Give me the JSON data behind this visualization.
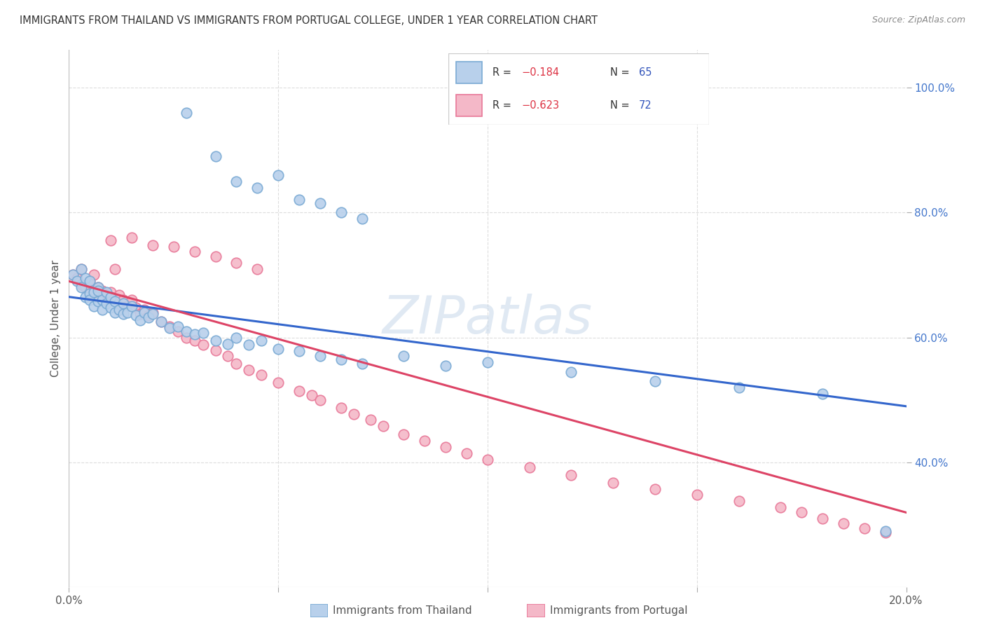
{
  "title": "IMMIGRANTS FROM THAILAND VS IMMIGRANTS FROM PORTUGAL COLLEGE, UNDER 1 YEAR CORRELATION CHART",
  "source": "Source: ZipAtlas.com",
  "ylabel": "College, Under 1 year",
  "x_min": 0.0,
  "x_max": 0.2,
  "y_min": 0.2,
  "y_max": 1.06,
  "right_y_ticks": [
    1.0,
    0.8,
    0.6,
    0.4
  ],
  "right_y_labels": [
    "100.0%",
    "80.0%",
    "60.0%",
    "40.0%"
  ],
  "x_ticks": [
    0.0,
    0.05,
    0.1,
    0.15,
    0.2
  ],
  "x_tick_labels": [
    "0.0%",
    "",
    "",
    "",
    "20.0%"
  ],
  "bottom_labels": [
    "Immigrants from Thailand",
    "Immigrants from Portugal"
  ],
  "thailand_color": "#b8d0eb",
  "thailand_edge": "#7aaad4",
  "portugal_color": "#f4b8c8",
  "portugal_edge": "#e87898",
  "thailand_line_color": "#3366cc",
  "portugal_line_color": "#dd4466",
  "R_thailand": -0.184,
  "N_thailand": 65,
  "R_portugal": -0.623,
  "N_portugal": 72,
  "watermark": "ZIPatlas",
  "background_color": "#ffffff",
  "grid_color": "#dddddd",
  "title_color": "#333333",
  "axis_label_color": "#555555",
  "legend_color_R": "#dd3344",
  "legend_color_N": "#3355bb",
  "thailand_x": [
    0.001,
    0.002,
    0.003,
    0.003,
    0.004,
    0.004,
    0.005,
    0.005,
    0.005,
    0.006,
    0.006,
    0.007,
    0.007,
    0.007,
    0.008,
    0.008,
    0.009,
    0.009,
    0.01,
    0.01,
    0.011,
    0.011,
    0.012,
    0.013,
    0.013,
    0.014,
    0.015,
    0.016,
    0.017,
    0.018,
    0.019,
    0.02,
    0.022,
    0.024,
    0.026,
    0.028,
    0.03,
    0.032,
    0.035,
    0.038,
    0.04,
    0.043,
    0.046,
    0.05,
    0.055,
    0.06,
    0.065,
    0.07,
    0.028,
    0.035,
    0.04,
    0.045,
    0.05,
    0.055,
    0.06,
    0.065,
    0.07,
    0.08,
    0.09,
    0.1,
    0.12,
    0.14,
    0.16,
    0.18,
    0.195
  ],
  "thailand_y": [
    0.7,
    0.69,
    0.68,
    0.71,
    0.665,
    0.695,
    0.67,
    0.66,
    0.69,
    0.672,
    0.65,
    0.68,
    0.658,
    0.675,
    0.66,
    0.645,
    0.655,
    0.672,
    0.648,
    0.665,
    0.64,
    0.658,
    0.645,
    0.655,
    0.638,
    0.64,
    0.65,
    0.635,
    0.628,
    0.64,
    0.632,
    0.638,
    0.625,
    0.615,
    0.618,
    0.61,
    0.605,
    0.608,
    0.595,
    0.59,
    0.6,
    0.588,
    0.595,
    0.582,
    0.578,
    0.57,
    0.565,
    0.558,
    0.96,
    0.89,
    0.85,
    0.84,
    0.86,
    0.82,
    0.815,
    0.8,
    0.79,
    0.57,
    0.555,
    0.56,
    0.545,
    0.53,
    0.52,
    0.51,
    0.29
  ],
  "portugal_x": [
    0.001,
    0.002,
    0.003,
    0.003,
    0.004,
    0.005,
    0.005,
    0.006,
    0.006,
    0.007,
    0.007,
    0.008,
    0.008,
    0.009,
    0.009,
    0.01,
    0.01,
    0.011,
    0.012,
    0.012,
    0.013,
    0.014,
    0.015,
    0.016,
    0.017,
    0.018,
    0.019,
    0.02,
    0.022,
    0.024,
    0.026,
    0.028,
    0.03,
    0.032,
    0.035,
    0.038,
    0.04,
    0.043,
    0.046,
    0.05,
    0.055,
    0.058,
    0.06,
    0.065,
    0.068,
    0.072,
    0.075,
    0.08,
    0.085,
    0.09,
    0.095,
    0.1,
    0.11,
    0.12,
    0.13,
    0.14,
    0.15,
    0.16,
    0.17,
    0.175,
    0.18,
    0.185,
    0.19,
    0.195,
    0.01,
    0.015,
    0.02,
    0.025,
    0.03,
    0.035,
    0.04,
    0.045
  ],
  "portugal_y": [
    0.7,
    0.695,
    0.685,
    0.71,
    0.68,
    0.675,
    0.69,
    0.678,
    0.7,
    0.67,
    0.68,
    0.665,
    0.675,
    0.658,
    0.67,
    0.665,
    0.672,
    0.71,
    0.645,
    0.668,
    0.66,
    0.65,
    0.66,
    0.648,
    0.638,
    0.645,
    0.635,
    0.64,
    0.625,
    0.618,
    0.61,
    0.6,
    0.595,
    0.588,
    0.58,
    0.57,
    0.558,
    0.548,
    0.54,
    0.528,
    0.515,
    0.508,
    0.5,
    0.488,
    0.478,
    0.468,
    0.458,
    0.445,
    0.435,
    0.425,
    0.415,
    0.405,
    0.392,
    0.38,
    0.368,
    0.358,
    0.348,
    0.338,
    0.328,
    0.32,
    0.31,
    0.302,
    0.295,
    0.288,
    0.755,
    0.76,
    0.748,
    0.745,
    0.738,
    0.73,
    0.72,
    0.71
  ]
}
